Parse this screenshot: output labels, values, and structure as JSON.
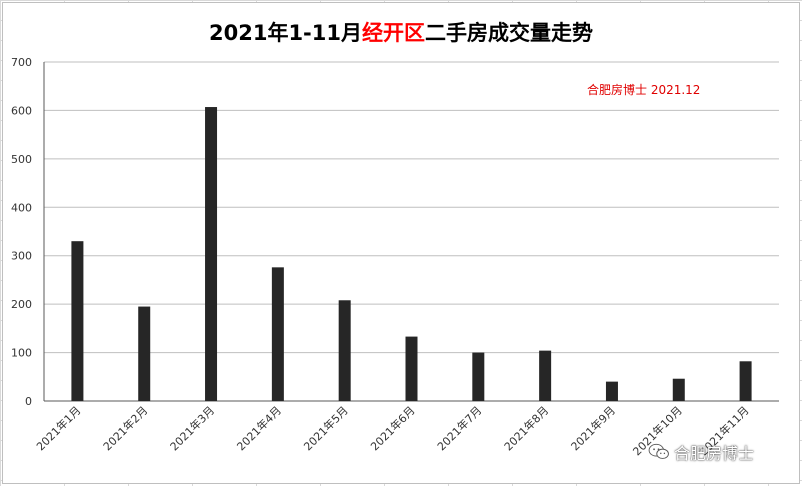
{
  "chart_data": {
    "type": "bar",
    "title_parts": [
      {
        "text": "2021年1-11月",
        "highlight": false
      },
      {
        "text": "经开区",
        "highlight": true
      },
      {
        "text": "二手房成交量走势",
        "highlight": false
      }
    ],
    "categories": [
      "2021年1月",
      "2021年2月",
      "2021年3月",
      "2021年4月",
      "2021年5月",
      "2021年6月",
      "2021年7月",
      "2021年8月",
      "2021年9月",
      "2021年10月",
      "2021年11月"
    ],
    "values": [
      330,
      195,
      607,
      276,
      208,
      133,
      100,
      104,
      40,
      46,
      82
    ],
    "ylim": [
      0,
      700
    ],
    "yticks": [
      0,
      100,
      200,
      300,
      400,
      500,
      600,
      700
    ],
    "grid": true,
    "bar_color": "#262626",
    "highlight_color": "#ff0000",
    "annotation": "合肥房博士  2021.12"
  },
  "watermark": {
    "icon": "wechat-icon",
    "text": "合肥房博士"
  }
}
